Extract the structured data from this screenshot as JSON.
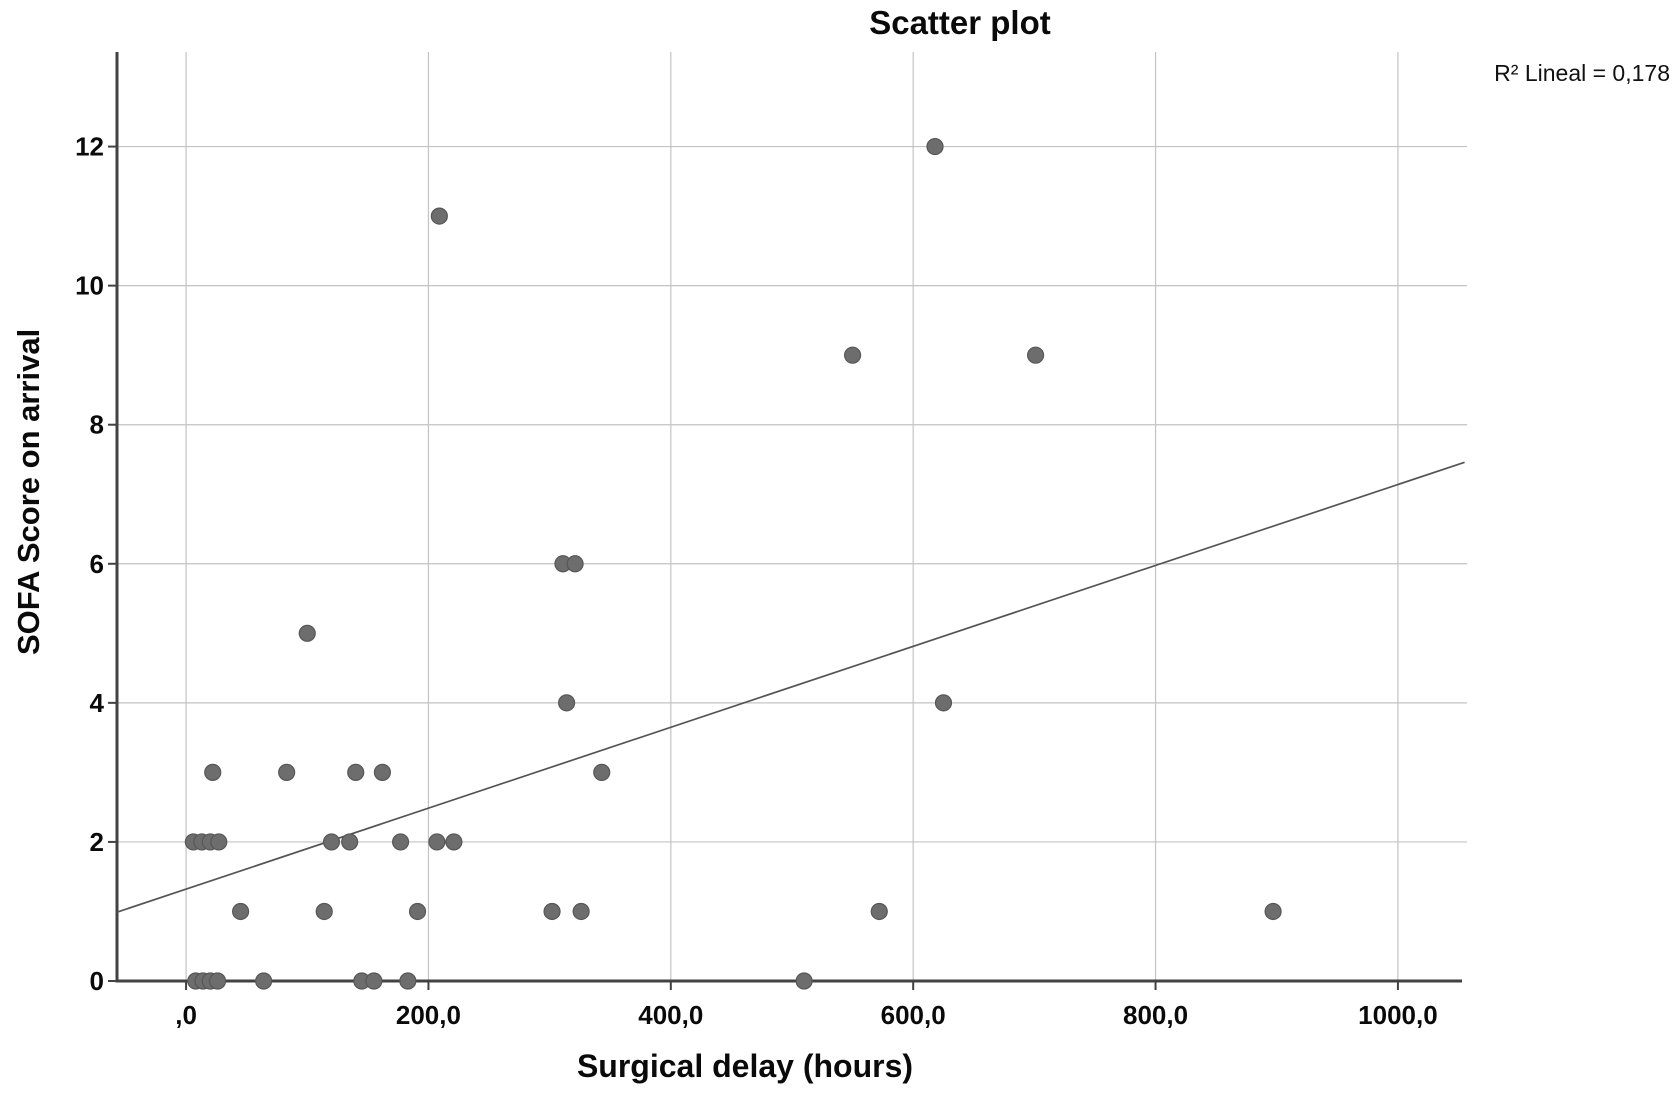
{
  "title": "Scatter plot",
  "annotation": {
    "r2_label": "R² Lineal = 0,178"
  },
  "chart_data": {
    "type": "scatter",
    "title": "Scatter plot",
    "xlabel": "Surgical delay (hours)",
    "ylabel": "SOFA Score on arrival",
    "xlim": [
      -57,
      1057
    ],
    "ylim": [
      0,
      13.36
    ],
    "grid": true,
    "x_ticks": [
      {
        "value": 0,
        "label": ",0"
      },
      {
        "value": 200,
        "label": "200,0"
      },
      {
        "value": 400,
        "label": "400,0"
      },
      {
        "value": 600,
        "label": "600,0"
      },
      {
        "value": 800,
        "label": "800,0"
      },
      {
        "value": 1000,
        "label": "1000,0"
      }
    ],
    "y_ticks": [
      {
        "value": 0,
        "label": "0"
      },
      {
        "value": 2,
        "label": "2"
      },
      {
        "value": 4,
        "label": "4"
      },
      {
        "value": 6,
        "label": "6"
      },
      {
        "value": 8,
        "label": "8"
      },
      {
        "value": 10,
        "label": "10"
      },
      {
        "value": 12,
        "label": "12"
      }
    ],
    "points": [
      [
        618,
        12
      ],
      [
        209,
        11
      ],
      [
        550,
        9
      ],
      [
        701,
        9
      ],
      [
        311,
        6
      ],
      [
        321,
        6
      ],
      [
        100,
        5
      ],
      [
        314,
        4
      ],
      [
        625,
        4
      ],
      [
        22,
        3
      ],
      [
        83,
        3
      ],
      [
        140,
        3
      ],
      [
        162,
        3
      ],
      [
        343,
        3
      ],
      [
        6,
        2
      ],
      [
        13,
        2
      ],
      [
        20,
        2
      ],
      [
        27,
        2
      ],
      [
        120,
        2
      ],
      [
        135,
        2
      ],
      [
        177,
        2
      ],
      [
        207,
        2
      ],
      [
        221,
        2
      ],
      [
        45,
        1
      ],
      [
        114,
        1
      ],
      [
        191,
        1
      ],
      [
        302,
        1
      ],
      [
        326,
        1
      ],
      [
        572,
        1
      ],
      [
        897,
        1
      ],
      [
        8,
        0
      ],
      [
        14,
        0
      ],
      [
        20,
        0
      ],
      [
        26,
        0
      ],
      [
        64,
        0
      ],
      [
        145,
        0
      ],
      [
        155,
        0
      ],
      [
        183,
        0
      ],
      [
        510,
        0
      ]
    ],
    "trendline": {
      "x1": -57,
      "y1": 0.99,
      "x2": 1055,
      "y2": 7.46,
      "r2_text": "0,178"
    },
    "legend": "none",
    "colors": {
      "point": "#6d6d6d",
      "point_stroke": "#575757",
      "grid": "#c3c3c3",
      "axis": "#424242",
      "trendline": "#545454",
      "text": "#0a0a0a",
      "background": "#ffffff"
    }
  }
}
